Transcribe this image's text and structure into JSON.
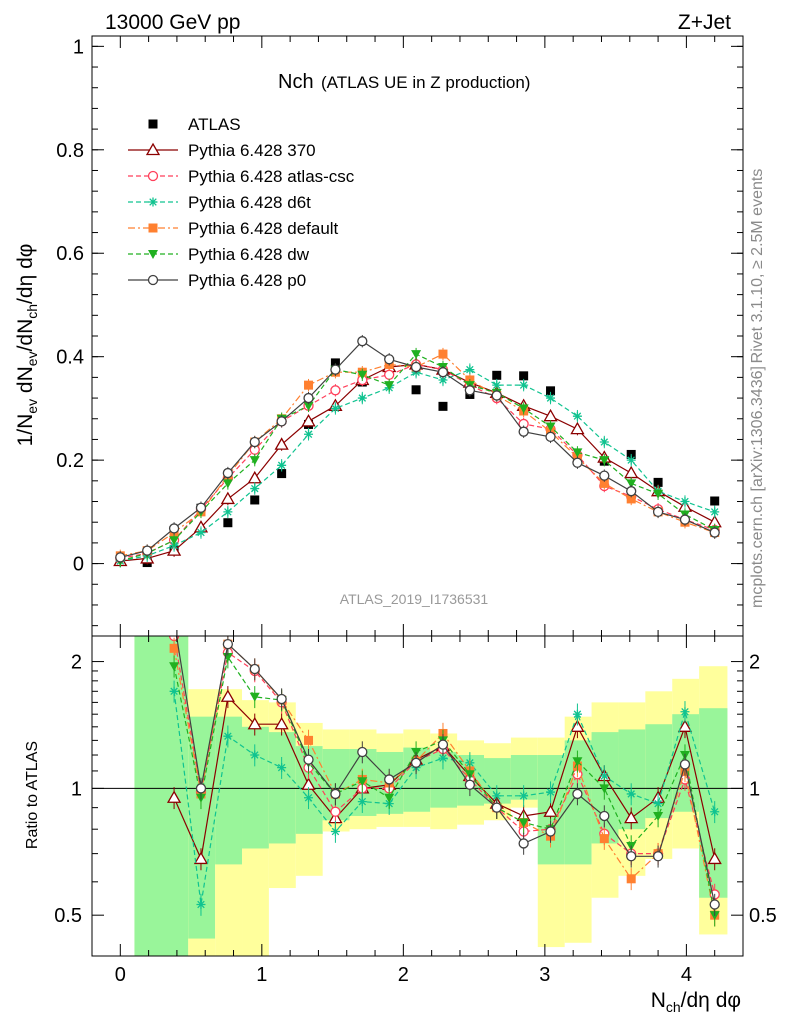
{
  "header": {
    "left": "13000 GeV pp",
    "right": "Z+Jet"
  },
  "side_labels": {
    "rivet": "Rivet 3.1.10, ≥ 2.5M events",
    "mcplots": "mcplots.cern.ch [arXiv:1306.3436]"
  },
  "analysis_id": "ATLAS_2019_I1736531",
  "chart_data": [
    {
      "type": "scatter",
      "title": "Nch",
      "subtitle": "(ATLAS UE in Z production)",
      "xlabel": "N_ch/dη dφ",
      "ylabel": "1/N_ev dN_ev/dN_ch/dη dφ",
      "xlim": [
        -0.2,
        4.4
      ],
      "ylim": [
        -0.14,
        1.02
      ],
      "yticks": [
        0,
        0.2,
        0.4,
        0.6,
        0.8,
        1
      ],
      "ytick_labels": [
        "0",
        "0.2",
        "0.4",
        "0.6",
        "0.8",
        "1"
      ],
      "x": [
        0,
        0.19,
        0.38,
        0.57,
        0.76,
        0.95,
        1.14,
        1.33,
        1.52,
        1.71,
        1.9,
        2.09,
        2.28,
        2.47,
        2.66,
        2.85,
        3.04,
        3.23,
        3.42,
        3.61,
        3.8,
        3.99,
        4.2
      ],
      "series": [
        {
          "name": "ATLAS",
          "values": [
            0.005,
            0.002,
            0.025,
            0.107,
            0.079,
            0.123,
            0.174,
            0.269,
            0.388,
            0.351,
            0.375,
            0.336,
            0.304,
            0.327,
            0.364,
            0.363,
            0.334,
            null,
            0.198,
            0.211,
            0.157,
            0.081,
            0.121
          ]
        },
        {
          "name": "Pythia 6.428 370",
          "values": [
            0.005,
            0.01,
            0.025,
            0.07,
            0.125,
            0.165,
            0.23,
            0.275,
            0.305,
            0.355,
            0.38,
            0.385,
            0.375,
            0.35,
            0.33,
            0.305,
            0.285,
            0.26,
            0.205,
            0.175,
            0.14,
            0.11,
            0.08
          ]
        },
        {
          "name": "Pythia 6.428 atlas-csc",
          "values": [
            0.01,
            0.02,
            0.045,
            0.105,
            0.165,
            0.22,
            0.275,
            0.305,
            0.335,
            0.355,
            0.365,
            0.385,
            0.375,
            0.345,
            0.32,
            0.27,
            0.26,
            0.21,
            0.15,
            0.13,
            0.105,
            0.085,
            0.065
          ]
        },
        {
          "name": "Pythia 6.428 d6t",
          "values": [
            0.005,
            0.015,
            0.035,
            0.06,
            0.1,
            0.145,
            0.19,
            0.25,
            0.3,
            0.32,
            0.34,
            0.37,
            0.355,
            0.375,
            0.345,
            0.345,
            0.32,
            0.285,
            0.235,
            0.2,
            0.14,
            0.12,
            0.1
          ]
        },
        {
          "name": "Pythia 6.428 default",
          "values": [
            0.015,
            0.025,
            0.06,
            0.1,
            0.17,
            0.235,
            0.28,
            0.345,
            0.37,
            0.37,
            0.385,
            0.38,
            0.405,
            0.355,
            0.325,
            0.295,
            0.255,
            0.205,
            0.155,
            0.125,
            0.1,
            0.08,
            0.06
          ]
        },
        {
          "name": "Pythia 6.428 dw",
          "values": [
            0.005,
            0.02,
            0.045,
            0.1,
            0.155,
            0.2,
            0.28,
            0.305,
            0.375,
            0.365,
            0.345,
            0.405,
            0.38,
            0.345,
            0.33,
            0.3,
            0.265,
            0.215,
            0.2,
            0.155,
            0.135,
            0.095,
            0.065
          ]
        },
        {
          "name": "Pythia 6.428 p0",
          "values": [
            0.012,
            0.025,
            0.068,
            0.108,
            0.175,
            0.235,
            0.275,
            0.32,
            0.375,
            0.43,
            0.395,
            0.38,
            0.37,
            0.335,
            0.325,
            0.255,
            0.245,
            0.195,
            0.17,
            0.14,
            0.1,
            0.085,
            0.06
          ]
        }
      ]
    },
    {
      "type": "scatter",
      "title": "",
      "xlabel": "N_ch/dη dφ",
      "ylabel": "Ratio to ATLAS",
      "xlim": [
        -0.2,
        4.4
      ],
      "ylim": [
        0.4,
        2.3
      ],
      "yscale": "log",
      "yticks": [
        0.5,
        1,
        2
      ],
      "ytick_labels": [
        "0.5",
        "1",
        "2"
      ],
      "xticks": [
        0,
        1,
        2,
        3,
        4
      ],
      "xtick_labels": [
        "0",
        "1",
        "2",
        "3",
        "4"
      ],
      "x": [
        0.38,
        0.57,
        0.76,
        0.95,
        1.14,
        1.33,
        1.52,
        1.71,
        1.9,
        2.09,
        2.28,
        2.47,
        2.66,
        2.85,
        3.04,
        3.23,
        3.42,
        3.61,
        3.8,
        3.99,
        4.2
      ],
      "bands": {
        "edges": [
          0.1,
          0.48,
          0.67,
          0.86,
          1.05,
          1.24,
          1.43,
          1.62,
          1.81,
          2.0,
          2.19,
          2.38,
          2.57,
          2.76,
          2.95,
          3.14,
          3.33,
          3.52,
          3.71,
          3.9,
          4.09,
          4.29
        ],
        "outer_lo": [
          0.4,
          0.4,
          0.4,
          0.4,
          0.58,
          0.62,
          0.79,
          0.8,
          0.81,
          0.81,
          0.8,
          0.82,
          0.84,
          0.9,
          0.42,
          0.43,
          0.55,
          0.62,
          0.68,
          0.72,
          0.45
        ],
        "outer_hi": [
          2.3,
          1.72,
          1.72,
          1.62,
          1.6,
          1.43,
          1.38,
          1.38,
          1.35,
          1.38,
          1.35,
          1.3,
          1.28,
          1.32,
          1.32,
          1.48,
          1.6,
          1.6,
          1.7,
          1.82,
          1.95
        ],
        "inner_lo": [
          0.4,
          0.44,
          0.66,
          0.72,
          0.74,
          0.78,
          0.84,
          0.86,
          0.87,
          0.88,
          0.9,
          0.91,
          0.92,
          0.94,
          0.66,
          0.66,
          0.74,
          0.8,
          0.85,
          0.88,
          0.55
        ],
        "inner_hi": [
          2.3,
          1.48,
          1.48,
          1.4,
          1.36,
          1.26,
          1.24,
          1.24,
          1.22,
          1.25,
          1.22,
          1.2,
          1.18,
          1.2,
          1.2,
          1.3,
          1.36,
          1.38,
          1.42,
          1.5,
          1.55
        ]
      },
      "series": [
        {
          "name": "Pythia 6.428 370",
          "values": [
            0.95,
            0.68,
            1.65,
            1.42,
            1.42,
            1.02,
            0.85,
            1.0,
            1.02,
            1.17,
            1.26,
            1.07,
            0.92,
            0.86,
            0.88,
            1.4,
            1.07,
            0.85,
            0.95,
            1.4,
            0.68
          ]
        },
        {
          "name": "Pythia 6.428 atlas-csc",
          "values": [
            2.3,
            0.98,
            2.1,
            1.9,
            1.6,
            1.12,
            0.88,
            1.0,
            1.0,
            1.16,
            1.24,
            1.05,
            0.9,
            0.79,
            0.8,
            1.08,
            0.78,
            0.7,
            0.7,
            1.05,
            0.56
          ]
        },
        {
          "name": "Pythia 6.428 d6t",
          "values": [
            1.7,
            0.53,
            1.33,
            1.2,
            1.12,
            0.95,
            0.79,
            0.93,
            0.92,
            1.12,
            1.18,
            1.15,
            0.96,
            0.96,
            0.98,
            1.5,
            1.07,
            0.97,
            0.92,
            1.52,
            0.88
          ]
        },
        {
          "name": "Pythia 6.428 default",
          "values": [
            2.15,
            0.97,
            2.2,
            1.92,
            1.62,
            1.3,
            0.97,
            1.05,
            1.03,
            1.16,
            1.35,
            1.1,
            0.9,
            0.83,
            0.77,
            1.13,
            0.76,
            0.61,
            0.7,
            1.1,
            0.5
          ]
        },
        {
          "name": "Pythia 6.428 dw",
          "values": [
            1.95,
            0.95,
            2.05,
            1.65,
            1.62,
            1.15,
            0.97,
            1.04,
            0.95,
            1.22,
            1.3,
            1.08,
            0.9,
            0.83,
            0.8,
            1.16,
            1.0,
            0.73,
            0.86,
            1.2,
            0.5
          ]
        },
        {
          "name": "Pythia 6.428 p0",
          "values": [
            2.5,
            1.0,
            2.2,
            1.92,
            1.63,
            1.17,
            0.97,
            1.22,
            1.05,
            1.15,
            1.27,
            1.02,
            0.9,
            0.74,
            0.79,
            0.97,
            0.86,
            0.69,
            0.69,
            1.14,
            0.53
          ]
        }
      ]
    }
  ],
  "styles": [
    {
      "name": "ATLAS",
      "color": "#000000",
      "marker": "filled-square",
      "line": "none"
    },
    {
      "name": "Pythia 6.428 370",
      "color": "#8b0000",
      "marker": "open-triangle",
      "line": "solid"
    },
    {
      "name": "Pythia 6.428 atlas-csc",
      "color": "#ff3f5a",
      "marker": "open-circle",
      "line": "dashed"
    },
    {
      "name": "Pythia 6.428 d6t",
      "color": "#10c390",
      "marker": "asterisk",
      "line": "dashed"
    },
    {
      "name": "Pythia 6.428 default",
      "color": "#ff8030",
      "marker": "filled-square",
      "line": "dashdot"
    },
    {
      "name": "Pythia 6.428 dw",
      "color": "#20b020",
      "marker": "filled-triangle-down",
      "line": "dashed"
    },
    {
      "name": "Pythia 6.428 p0",
      "color": "#404040",
      "marker": "open-circle",
      "line": "solid"
    }
  ],
  "colors": {
    "band_inner": "#99f59a",
    "band_outer": "#ffff9c",
    "axis": "#000000",
    "side_text": "#8a8a8a"
  }
}
